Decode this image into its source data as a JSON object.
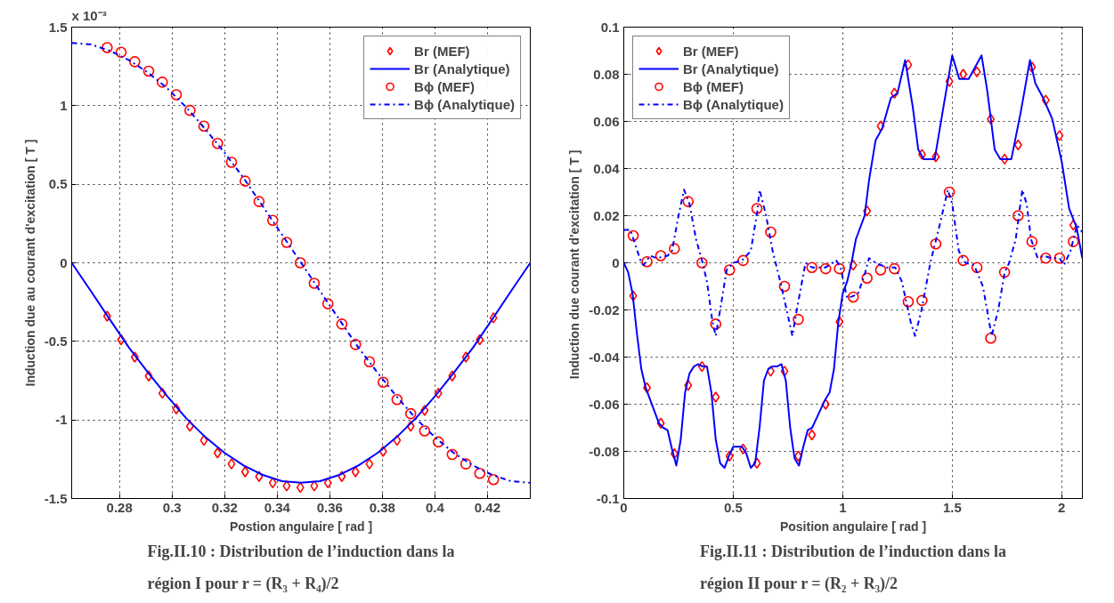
{
  "chart_data": [
    {
      "type": "line",
      "xlabel": "Postion angulaire [ rad ]",
      "ylabel": "Induction due au courant d'excitation [ T ]",
      "annotations": [
        "x 10⁻³",
        "Fig.II.10 : Distribution de l’induction dans la\nrégion I pour r = (R₃ + R₄)/2"
      ],
      "xlim": [
        0.2618,
        0.4363
      ],
      "xticks": [
        0.28,
        0.3,
        0.32,
        0.34,
        0.36,
        0.38,
        0.4,
        0.42
      ],
      "ylim": [
        -1.5,
        1.5
      ],
      "yticks": [
        -1.5,
        -1,
        -0.5,
        0,
        0.5,
        1,
        1.5
      ],
      "grid": true,
      "legend": "top right",
      "series": [
        {
          "name": "Br (MEF)",
          "type": "scatter",
          "marker": "diamond",
          "color": "#ff0000",
          "x": [
            0.2753,
            0.2806,
            0.2858,
            0.2911,
            0.2963,
            0.3016,
            0.3068,
            0.3121,
            0.3173,
            0.3226,
            0.3278,
            0.3331,
            0.3383,
            0.3436,
            0.3488,
            0.3541,
            0.3593,
            0.3646,
            0.3698,
            0.3751,
            0.3803,
            0.3856,
            0.3908,
            0.3961,
            0.4013,
            0.4066,
            0.4118,
            0.4171,
            0.4223
          ],
          "values": [
            -0.34,
            -0.49,
            -0.6,
            -0.72,
            -0.83,
            -0.93,
            -1.04,
            -1.13,
            -1.21,
            -1.28,
            -1.33,
            -1.36,
            -1.4,
            -1.42,
            -1.43,
            -1.42,
            -1.4,
            -1.36,
            -1.33,
            -1.28,
            -1.2,
            -1.13,
            -1.04,
            -0.94,
            -0.83,
            -0.72,
            -0.6,
            -0.49,
            -0.35
          ]
        },
        {
          "name": "Br (Analytique)",
          "line_style": "solid",
          "color": "#0000ff",
          "x": [
            0.2618,
            0.2691,
            0.2763,
            0.2836,
            0.2909,
            0.2982,
            0.3054,
            0.3127,
            0.32,
            0.3272,
            0.3345,
            0.3418,
            0.3491,
            0.3563,
            0.3636,
            0.3709,
            0.3782,
            0.3854,
            0.3927,
            0.4,
            0.4072,
            0.4145,
            0.4218,
            0.429,
            0.4363
          ],
          "values": [
            0,
            -0.18,
            -0.36,
            -0.54,
            -0.7,
            -0.85,
            -0.99,
            -1.11,
            -1.21,
            -1.29,
            -1.35,
            -1.39,
            -1.4,
            -1.39,
            -1.35,
            -1.29,
            -1.21,
            -1.11,
            -0.99,
            -0.85,
            -0.7,
            -0.54,
            -0.36,
            -0.18,
            0
          ]
        },
        {
          "name": "Bϕ (MEF)",
          "type": "scatter",
          "marker": "circle",
          "color": "#ff0000",
          "x": [
            0.2753,
            0.2806,
            0.2858,
            0.2911,
            0.2963,
            0.3016,
            0.3068,
            0.3121,
            0.3173,
            0.3226,
            0.3278,
            0.3331,
            0.3383,
            0.3436,
            0.3488,
            0.3541,
            0.3593,
            0.3646,
            0.3698,
            0.3751,
            0.3803,
            0.3856,
            0.3908,
            0.3961,
            0.4013,
            0.4066,
            0.4118,
            0.4171,
            0.4223
          ],
          "values": [
            1.37,
            1.34,
            1.28,
            1.22,
            1.15,
            1.07,
            0.97,
            0.87,
            0.76,
            0.64,
            0.52,
            0.39,
            0.27,
            0.13,
            0.0,
            -0.13,
            -0.26,
            -0.39,
            -0.52,
            -0.63,
            -0.76,
            -0.87,
            -0.96,
            -1.07,
            -1.14,
            -1.22,
            -1.28,
            -1.34,
            -1.38
          ]
        },
        {
          "name": "Bϕ (Analytique)",
          "line_style": "dashdot",
          "color": "#0000ff",
          "x": [
            0.2618,
            0.2691,
            0.2763,
            0.2836,
            0.2909,
            0.2982,
            0.3054,
            0.3127,
            0.32,
            0.3272,
            0.3345,
            0.3418,
            0.3491,
            0.3563,
            0.3636,
            0.3709,
            0.3782,
            0.3854,
            0.3927,
            0.4,
            0.4072,
            0.4145,
            0.4218,
            0.429,
            0.4363
          ],
          "values": [
            1.4,
            1.39,
            1.35,
            1.29,
            1.21,
            1.11,
            0.99,
            0.85,
            0.7,
            0.54,
            0.36,
            0.18,
            0,
            -0.18,
            -0.36,
            -0.54,
            -0.7,
            -0.85,
            -0.99,
            -1.11,
            -1.21,
            -1.29,
            -1.35,
            -1.39,
            -1.4
          ]
        }
      ]
    },
    {
      "type": "line",
      "xlabel": "Position angulaire [ rad ]",
      "ylabel": "Induction due  courant d'excitation [ T ]",
      "annotations": [
        "Fig.II.11 : Distribution de l’induction dans la\nrégion II pour r = (R₂ + R₃)/2"
      ],
      "xlim": [
        0,
        2.0944
      ],
      "xticks": [
        0,
        0.5,
        1,
        1.5,
        2
      ],
      "ylim": [
        -0.1,
        0.1
      ],
      "yticks": [
        -0.1,
        -0.08,
        -0.06,
        -0.04,
        -0.02,
        0,
        0.02,
        0.04,
        0.06,
        0.08,
        0.1
      ],
      "grid": true,
      "legend": "top left",
      "series": [
        {
          "name": "Br (MEF)",
          "type": "scatter",
          "marker": "diamond",
          "color": "#ff0000",
          "x": [
            0.043,
            0.106,
            0.169,
            0.231,
            0.294,
            0.357,
            0.42,
            0.483,
            0.545,
            0.608,
            0.671,
            0.734,
            0.797,
            0.859,
            0.922,
            0.985,
            1.048,
            1.111,
            1.173,
            1.236,
            1.299,
            1.362,
            1.425,
            1.487,
            1.55,
            1.613,
            1.676,
            1.739,
            1.801,
            1.864,
            1.927,
            1.99,
            2.053
          ],
          "values": [
            -0.014,
            -0.053,
            -0.068,
            -0.081,
            -0.052,
            -0.044,
            -0.057,
            -0.082,
            -0.079,
            -0.085,
            -0.046,
            -0.046,
            -0.082,
            -0.073,
            -0.06,
            -0.025,
            -0.001,
            0.022,
            0.058,
            0.072,
            0.084,
            0.046,
            0.045,
            0.077,
            0.08,
            0.081,
            0.061,
            0.044,
            0.05,
            0.083,
            0.069,
            0.054,
            0.016
          ]
        },
        {
          "name": "Br (Analytique)",
          "line_style": "solid",
          "color": "#0000ff",
          "x": [
            0,
            0.02,
            0.04,
            0.06,
            0.08,
            0.1,
            0.12,
            0.14,
            0.16,
            0.18,
            0.2,
            0.22,
            0.24,
            0.26,
            0.28,
            0.3,
            0.32,
            0.34,
            0.36,
            0.38,
            0.4,
            0.42,
            0.44,
            0.46,
            0.48,
            0.5,
            0.52,
            0.54,
            0.56,
            0.58,
            0.6,
            0.62,
            0.64,
            0.66,
            0.68,
            0.7,
            0.72,
            0.74,
            0.76,
            0.78,
            0.8,
            0.82,
            0.84,
            0.86,
            0.88,
            0.9,
            0.92,
            0.94,
            0.96,
            0.98,
            1.0,
            1.02,
            1.04,
            1.06,
            1.08,
            1.1,
            1.12,
            1.15,
            1.18,
            1.22,
            1.25,
            1.285,
            1.32,
            1.345,
            1.37,
            1.42,
            1.456,
            1.5,
            1.532,
            1.575,
            1.634,
            1.66,
            1.694,
            1.72,
            1.77,
            1.813,
            1.855,
            1.88,
            1.915,
            1.957,
            2.0,
            2.034,
            2.068,
            2.094
          ],
          "values": [
            0,
            -0.004,
            -0.013,
            -0.03,
            -0.045,
            -0.053,
            -0.058,
            -0.063,
            -0.068,
            -0.07,
            -0.071,
            -0.079,
            -0.086,
            -0.075,
            -0.055,
            -0.047,
            -0.044,
            -0.043,
            -0.044,
            -0.044,
            -0.055,
            -0.075,
            -0.085,
            -0.087,
            -0.082,
            -0.078,
            -0.078,
            -0.078,
            -0.081,
            -0.087,
            -0.085,
            -0.07,
            -0.05,
            -0.045,
            -0.044,
            -0.044,
            -0.043,
            -0.05,
            -0.07,
            -0.083,
            -0.086,
            -0.078,
            -0.071,
            -0.07,
            -0.066,
            -0.062,
            -0.058,
            -0.055,
            -0.045,
            -0.025,
            -0.013,
            -0.008,
            0,
            0.01,
            0.015,
            0.02,
            0.035,
            0.052,
            0.057,
            0.07,
            0.072,
            0.086,
            0.066,
            0.048,
            0.044,
            0.044,
            0.064,
            0.088,
            0.078,
            0.078,
            0.088,
            0.073,
            0.048,
            0.044,
            0.044,
            0.064,
            0.086,
            0.076,
            0.07,
            0.061,
            0.043,
            0.023,
            0.015,
            0.002
          ]
        },
        {
          "name": "Bϕ (MEF)",
          "type": "scatter",
          "marker": "circle",
          "color": "#ff0000",
          "x": [
            0.043,
            0.106,
            0.169,
            0.231,
            0.294,
            0.357,
            0.42,
            0.483,
            0.545,
            0.608,
            0.671,
            0.734,
            0.797,
            0.859,
            0.922,
            0.985,
            1.048,
            1.111,
            1.173,
            1.236,
            1.299,
            1.362,
            1.425,
            1.487,
            1.55,
            1.613,
            1.676,
            1.739,
            1.801,
            1.864,
            1.927,
            1.99,
            2.053
          ],
          "values": [
            0.0115,
            0.0005,
            0.003,
            0.006,
            0.026,
            0.0,
            -0.026,
            -0.003,
            0.001,
            0.023,
            0.013,
            -0.01,
            -0.024,
            -0.002,
            -0.0025,
            -0.0025,
            -0.0145,
            -0.0065,
            -0.003,
            -0.0025,
            -0.0165,
            -0.016,
            0.008,
            0.03,
            0.001,
            -0.002,
            -0.032,
            -0.004,
            0.02,
            0.009,
            0.002,
            0.002,
            0.009
          ]
        },
        {
          "name": "Bϕ (Analytique)",
          "line_style": "dashdot",
          "color": "#0000ff",
          "x": [
            0,
            0.03,
            0.08,
            0.09,
            0.12,
            0.15,
            0.2,
            0.22,
            0.25,
            0.275,
            0.3,
            0.33,
            0.36,
            0.38,
            0.405,
            0.42,
            0.44,
            0.47,
            0.5,
            0.54,
            0.58,
            0.61,
            0.62,
            0.65,
            0.68,
            0.72,
            0.77,
            0.79,
            0.83,
            0.86,
            0.92,
            0.97,
            0.99,
            1.02,
            1.05,
            1.07,
            1.1,
            1.12,
            1.15,
            1.2,
            1.24,
            1.27,
            1.31,
            1.33,
            1.36,
            1.4,
            1.44,
            1.48,
            1.5,
            1.53,
            1.56,
            1.6,
            1.64,
            1.68,
            1.71,
            1.74,
            1.76,
            1.79,
            1.82,
            1.84,
            1.86,
            1.89,
            1.92,
            1.95,
            1.99,
            2.01,
            2.04,
            2.07,
            2.094
          ],
          "values": [
            0.014,
            0.014,
            0,
            -0.001,
            0.003,
            0.002,
            0.003,
            0.005,
            0.02,
            0.031,
            0.025,
            0.01,
            0,
            -0.008,
            -0.025,
            -0.031,
            -0.02,
            -0.003,
            0,
            0.001,
            0.005,
            0.022,
            0.031,
            0.02,
            0.005,
            -0.01,
            -0.031,
            -0.02,
            0,
            -0.002,
            -0.002,
            0.001,
            -0.002,
            -0.015,
            -0.014,
            -0.013,
            -0.005,
            0.002,
            0,
            -0.002,
            -0.002,
            -0.008,
            -0.025,
            -0.031,
            -0.02,
            0,
            0.015,
            0.031,
            0.025,
            0.005,
            0,
            -0.001,
            -0.01,
            -0.031,
            -0.02,
            -0.004,
            0,
            0.01,
            0.031,
            0.025,
            0.01,
            0.002,
            0.003,
            0.002,
            0.002,
            -0.001,
            0.005,
            0.016,
            0.013
          ]
        }
      ]
    }
  ]
}
